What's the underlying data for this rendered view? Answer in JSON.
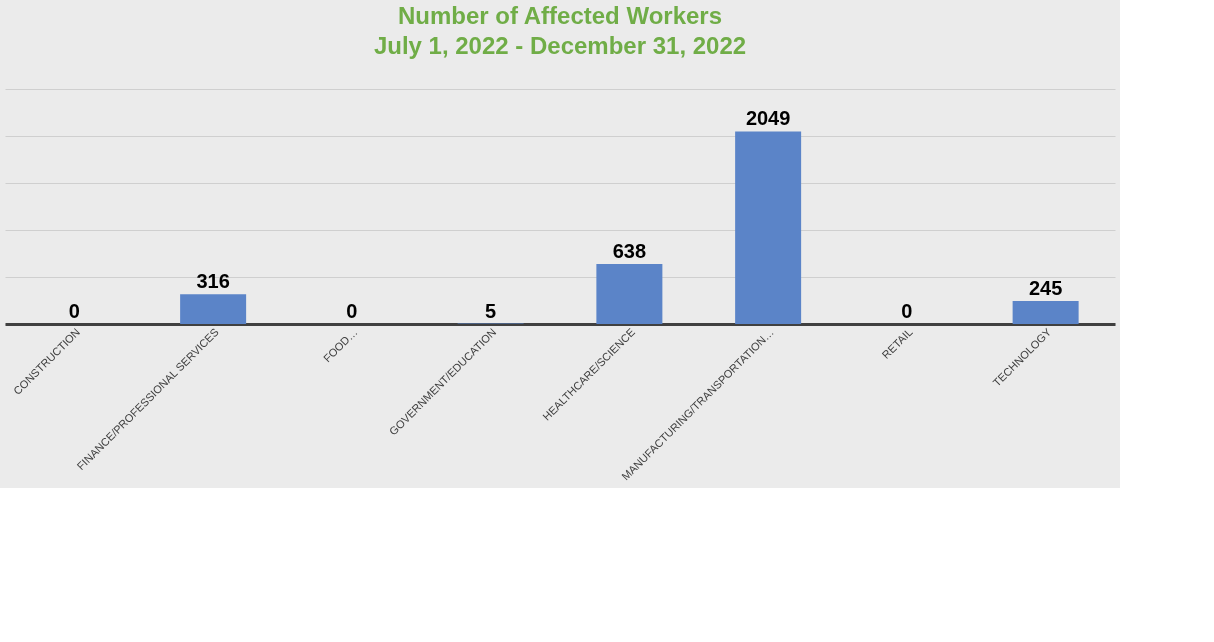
{
  "chart_data": {
    "type": "bar",
    "title": "Number of Affected Workers",
    "subtitle": "July 1, 2022 - December 31, 2022",
    "categories": [
      "CONSTRUCTION",
      "FINANCE/PROFESSIONAL SERVICES",
      "FOOD…",
      "GOVERNMENT/EDUCATION",
      "HEALTHCARE/SCIENCE",
      "MANUFACTURING/TRANSPORTATION…",
      "RETAIL",
      "TECHNOLOGY"
    ],
    "values": [
      0,
      316,
      0,
      5,
      638,
      2049,
      0,
      245
    ],
    "color": "#5b84c8",
    "ylim": [
      0,
      2500
    ],
    "yticks": [
      {
        "value": 0,
        "label": null
      },
      {
        "value": 500,
        "label": null
      },
      {
        "value": 1000,
        "label": null
      },
      {
        "value": 1500,
        "label": null
      },
      {
        "value": 2000,
        "label": null
      },
      {
        "value": 2500,
        "label": null
      }
    ],
    "grid": "y",
    "tick_labels": "x",
    "data_labels": true
  }
}
